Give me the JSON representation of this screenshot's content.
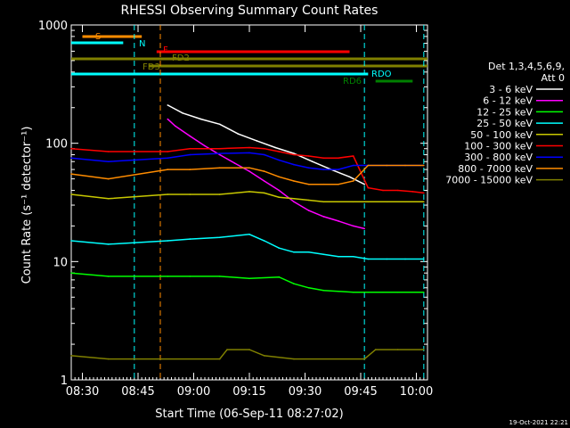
{
  "chart_data": {
    "type": "line",
    "title": "RHESSI Observing Summary Count Rates",
    "xlabel": "Start Time (06-Sep-11 08:27:02)",
    "ylabel": "Count Rate (s⁻¹ detector⁻¹)",
    "yscale": "log",
    "ylim": [
      1,
      1000
    ],
    "xlim_minutes_after_0827": [
      0,
      96
    ],
    "x_tick_labels": [
      {
        "label": "08:30",
        "minute": 3
      },
      {
        "label": "08:45",
        "minute": 18
      },
      {
        "label": "09:00",
        "minute": 33
      },
      {
        "label": "09:15",
        "minute": 48
      },
      {
        "label": "09:30",
        "minute": 63
      },
      {
        "label": "09:45",
        "minute": 78
      },
      {
        "label": "10:00",
        "minute": 93
      }
    ],
    "y_tick_labels": [
      {
        "label": "1",
        "value": 1
      },
      {
        "label": "10",
        "value": 10
      },
      {
        "label": "100",
        "value": 100
      },
      {
        "label": "1000",
        "value": 1000
      }
    ],
    "legend_header": [
      "Det 1,3,4,5,6,9,",
      "Att 0"
    ],
    "legend_position": "right",
    "series": [
      {
        "name": "3 - 6 keV",
        "color": "#ffffff",
        "points": [
          [
            26,
            210
          ],
          [
            30,
            180
          ],
          [
            35,
            160
          ],
          [
            40,
            145
          ],
          [
            45,
            120
          ],
          [
            50,
            105
          ],
          [
            55,
            92
          ],
          [
            60,
            82
          ],
          [
            65,
            70
          ],
          [
            70,
            60
          ],
          [
            75,
            52
          ],
          [
            79,
            45
          ]
        ]
      },
      {
        "name": "6 - 12 keV",
        "color": "#ff00ff",
        "points": [
          [
            26,
            160
          ],
          [
            28,
            140
          ],
          [
            32,
            115
          ],
          [
            36,
            95
          ],
          [
            40,
            80
          ],
          [
            44,
            68
          ],
          [
            48,
            58
          ],
          [
            52,
            48
          ],
          [
            56,
            40
          ],
          [
            60,
            32
          ],
          [
            64,
            27
          ],
          [
            68,
            24
          ],
          [
            72,
            22
          ],
          [
            76,
            20
          ],
          [
            79,
            19
          ]
        ]
      },
      {
        "name": "12 - 25 keV",
        "color": "#00ff00",
        "points": [
          [
            0,
            8
          ],
          [
            10,
            7.5
          ],
          [
            26,
            7.5
          ],
          [
            32,
            7.5
          ],
          [
            40,
            7.5
          ],
          [
            48,
            7.2
          ],
          [
            56,
            7.4
          ],
          [
            60,
            6.5
          ],
          [
            64,
            6
          ],
          [
            68,
            5.7
          ],
          [
            72,
            5.6
          ],
          [
            76,
            5.5
          ],
          [
            80,
            5.5
          ],
          [
            84,
            5.5
          ],
          [
            88,
            5.5
          ],
          [
            95,
            5.5
          ]
        ]
      },
      {
        "name": "25 - 50 keV",
        "color": "#00ffff",
        "points": [
          [
            0,
            15
          ],
          [
            10,
            14
          ],
          [
            26,
            15
          ],
          [
            32,
            15.5
          ],
          [
            40,
            16
          ],
          [
            48,
            17
          ],
          [
            52,
            15
          ],
          [
            56,
            13
          ],
          [
            60,
            12
          ],
          [
            64,
            12
          ],
          [
            68,
            11.5
          ],
          [
            72,
            11
          ],
          [
            76,
            11
          ],
          [
            80,
            10.5
          ],
          [
            85,
            10.5
          ],
          [
            90,
            10.5
          ],
          [
            95,
            10.5
          ]
        ]
      },
      {
        "name": "50 - 100 keV",
        "color": "#c8c800",
        "points": [
          [
            0,
            37
          ],
          [
            10,
            34
          ],
          [
            26,
            37
          ],
          [
            32,
            37
          ],
          [
            40,
            37
          ],
          [
            48,
            39
          ],
          [
            52,
            38
          ],
          [
            56,
            35
          ],
          [
            60,
            34
          ],
          [
            64,
            33
          ],
          [
            68,
            32
          ],
          [
            72,
            32
          ],
          [
            76,
            32
          ],
          [
            80,
            32
          ],
          [
            85,
            32
          ],
          [
            90,
            32
          ],
          [
            95,
            32
          ]
        ]
      },
      {
        "name": "100 - 300 keV",
        "color": "#ff0000",
        "points": [
          [
            0,
            90
          ],
          [
            10,
            85
          ],
          [
            26,
            85
          ],
          [
            32,
            90
          ],
          [
            40,
            90
          ],
          [
            48,
            92
          ],
          [
            52,
            90
          ],
          [
            56,
            85
          ],
          [
            60,
            80
          ],
          [
            64,
            78
          ],
          [
            68,
            75
          ],
          [
            72,
            75
          ],
          [
            76,
            78
          ],
          [
            80,
            42
          ],
          [
            84,
            40
          ],
          [
            88,
            40
          ],
          [
            92,
            39
          ],
          [
            95,
            38
          ]
        ]
      },
      {
        "name": "300 - 800 keV",
        "color": "#0000ff",
        "points": [
          [
            0,
            75
          ],
          [
            10,
            70
          ],
          [
            26,
            75
          ],
          [
            32,
            80
          ],
          [
            40,
            82
          ],
          [
            48,
            83
          ],
          [
            52,
            80
          ],
          [
            56,
            72
          ],
          [
            60,
            66
          ],
          [
            64,
            62
          ],
          [
            68,
            60
          ],
          [
            72,
            60
          ],
          [
            76,
            65
          ],
          [
            80,
            65
          ],
          [
            85,
            65
          ],
          [
            90,
            65
          ],
          [
            95,
            65
          ]
        ]
      },
      {
        "name": "800 - 7000 keV",
        "color": "#ff8c00",
        "points": [
          [
            0,
            55
          ],
          [
            10,
            50
          ],
          [
            26,
            60
          ],
          [
            32,
            60
          ],
          [
            40,
            62
          ],
          [
            48,
            62
          ],
          [
            52,
            58
          ],
          [
            56,
            52
          ],
          [
            60,
            48
          ],
          [
            64,
            45
          ],
          [
            68,
            45
          ],
          [
            72,
            45
          ],
          [
            76,
            48
          ],
          [
            80,
            65
          ],
          [
            85,
            65
          ],
          [
            90,
            65
          ],
          [
            95,
            65
          ]
        ]
      },
      {
        "name": "7000 - 15000 keV",
        "color": "#808000",
        "points": [
          [
            0,
            1.6
          ],
          [
            10,
            1.5
          ],
          [
            40,
            1.5
          ],
          [
            42,
            1.8
          ],
          [
            48,
            1.8
          ],
          [
            52,
            1.6
          ],
          [
            60,
            1.5
          ],
          [
            79,
            1.5
          ],
          [
            82,
            1.8
          ],
          [
            88,
            1.8
          ],
          [
            95,
            1.8
          ]
        ]
      }
    ],
    "flag_bars": [
      {
        "label": "S",
        "color": "#ff8c00"
      },
      {
        "label": "N",
        "color": "#00ffff"
      },
      {
        "label": "F",
        "color": "#ff0000"
      },
      {
        "label": "FD2",
        "color": "#808000"
      },
      {
        "label": "FD3",
        "color": "#808000"
      },
      {
        "label": "RDO",
        "color": "#00ffff"
      },
      {
        "label": "RD6",
        "color": "#008000"
      }
    ]
  },
  "timestamp": "19-Oct-2021 22:21"
}
